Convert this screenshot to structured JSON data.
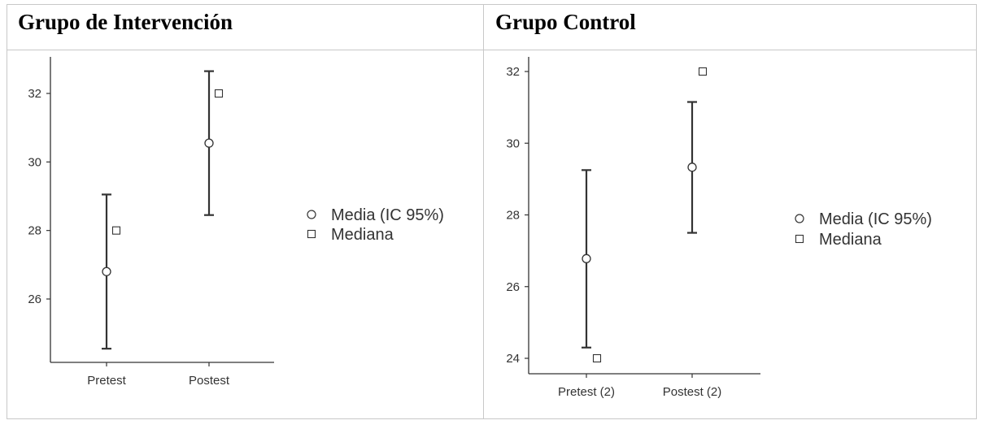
{
  "panels": [
    {
      "title": "Grupo de Intervención"
    },
    {
      "title": "Grupo Control"
    }
  ],
  "chart_data": [
    {
      "type": "scatter",
      "title": "Grupo de Intervención",
      "categories": [
        "Pretest",
        "Postest"
      ],
      "series": [
        {
          "name": "Media (IC 95%)",
          "marker": "circle",
          "values": [
            26.8,
            30.55
          ],
          "ci_lower": [
            24.55,
            28.45
          ],
          "ci_upper": [
            29.05,
            32.65
          ]
        },
        {
          "name": "Mediana",
          "marker": "square",
          "values": [
            28,
            32
          ]
        }
      ],
      "yticks": [
        26,
        28,
        30,
        32
      ],
      "ylim": [
        24.2,
        33.1
      ],
      "legend": "right",
      "grid": false
    },
    {
      "type": "scatter",
      "title": "Grupo Control",
      "categories": [
        "Pretest (2)",
        "Postest (2)"
      ],
      "series": [
        {
          "name": "Media (IC 95%)",
          "marker": "circle",
          "values": [
            26.78,
            29.33
          ],
          "ci_lower": [
            24.3,
            27.5
          ],
          "ci_upper": [
            29.25,
            31.15
          ]
        },
        {
          "name": "Mediana",
          "marker": "square",
          "values": [
            24,
            32
          ]
        }
      ],
      "yticks": [
        24,
        26,
        28,
        30,
        32
      ],
      "ylim": [
        23.6,
        32.4
      ],
      "legend": "right",
      "grid": false
    }
  ],
  "colors": {
    "ink": "#333333",
    "frame": "#c8c8c8"
  }
}
